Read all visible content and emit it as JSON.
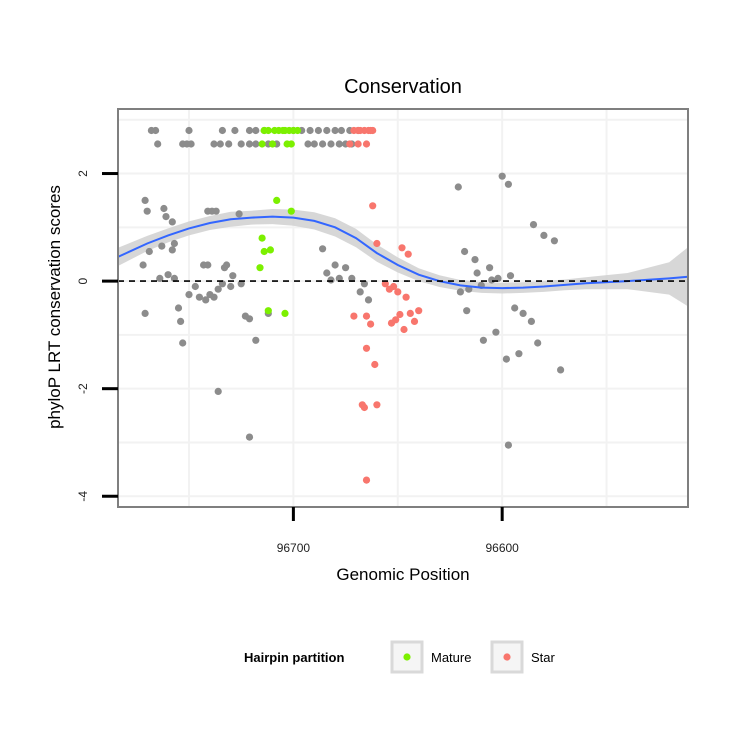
{
  "chart_data": {
    "type": "scatter",
    "title": "Conservation",
    "xlabel": "Genomic Position",
    "ylabel": "phyloP LRT conservation scores",
    "x_reversed": true,
    "xlim": [
      96784,
      96511
    ],
    "ylim": [
      -4.2,
      3.2
    ],
    "x_ticks": [
      96700,
      96600
    ],
    "y_ticks": [
      2,
      0,
      -2,
      -4
    ],
    "grid": true,
    "reference_line_y": 0,
    "legend": {
      "title": "Hairpin partition",
      "position": "bottom",
      "entries": [
        "Mature",
        "Star"
      ]
    },
    "colors": {
      "Other": "#8c8c8c",
      "Mature": "#7cf000",
      "Star": "#f8766d",
      "smooth_line": "#3366ff",
      "ribbon": "#d0d0d0",
      "panel_border": "#7f7f7f",
      "grid": "#f2f2f2"
    },
    "series": [
      {
        "label": "Other",
        "points": [
          [
            96768,
            2.8
          ],
          [
            96766,
            2.8
          ],
          [
            96750,
            2.8
          ],
          [
            96734,
            2.8
          ],
          [
            96728,
            2.8
          ],
          [
            96721,
            2.8
          ],
          [
            96718,
            2.8
          ],
          [
            96714,
            2.8
          ],
          [
            96700,
            2.8
          ],
          [
            96696,
            2.8
          ],
          [
            96692,
            2.8
          ],
          [
            96688,
            2.8
          ],
          [
            96684,
            2.8
          ],
          [
            96680,
            2.8
          ],
          [
            96677,
            2.8
          ],
          [
            96673,
            2.8
          ],
          [
            96669,
            2.8
          ],
          [
            96765,
            2.55
          ],
          [
            96753,
            2.55
          ],
          [
            96751,
            2.55
          ],
          [
            96749,
            2.55
          ],
          [
            96738,
            2.55
          ],
          [
            96735,
            2.55
          ],
          [
            96731,
            2.55
          ],
          [
            96725,
            2.55
          ],
          [
            96721,
            2.55
          ],
          [
            96718,
            2.55
          ],
          [
            96712,
            2.55
          ],
          [
            96708,
            2.55
          ],
          [
            96693,
            2.55
          ],
          [
            96690,
            2.55
          ],
          [
            96686,
            2.55
          ],
          [
            96682,
            2.55
          ],
          [
            96678,
            2.55
          ],
          [
            96675,
            2.55
          ],
          [
            96672,
            2.55
          ],
          [
            96771,
            1.5
          ],
          [
            96770,
            1.3
          ],
          [
            96762,
            1.35
          ],
          [
            96761,
            1.2
          ],
          [
            96758,
            1.1
          ],
          [
            96741,
            1.3
          ],
          [
            96739,
            1.3
          ],
          [
            96737,
            1.3
          ],
          [
            96726,
            1.25
          ],
          [
            96757,
            0.7
          ],
          [
            96763,
            0.65
          ],
          [
            96758,
            0.58
          ],
          [
            96769,
            0.55
          ],
          [
            96772,
            0.3
          ],
          [
            96760,
            0.12
          ],
          [
            96757,
            0.05
          ],
          [
            96743,
            0.3
          ],
          [
            96741,
            0.3
          ],
          [
            96733,
            0.25
          ],
          [
            96732,
            0.3
          ],
          [
            96729,
            0.1
          ],
          [
            96771,
            -0.6
          ],
          [
            96764,
            0.05
          ],
          [
            96755,
            -0.5
          ],
          [
            96754,
            -0.75
          ],
          [
            96750,
            -0.25
          ],
          [
            96747,
            -0.1
          ],
          [
            96745,
            -0.3
          ],
          [
            96742,
            -0.35
          ],
          [
            96740,
            -0.25
          ],
          [
            96738,
            -0.3
          ],
          [
            96736,
            -0.15
          ],
          [
            96734,
            -0.05
          ],
          [
            96730,
            -0.1
          ],
          [
            96725,
            -0.05
          ],
          [
            96723,
            -0.65
          ],
          [
            96721,
            -0.7
          ],
          [
            96718,
            -1.1
          ],
          [
            96712,
            -0.6
          ],
          [
            96753,
            -1.15
          ],
          [
            96736,
            -2.05
          ],
          [
            96721,
            -2.9
          ],
          [
            96686,
            0.6
          ],
          [
            96684,
            0.15
          ],
          [
            96682,
            0.02
          ],
          [
            96680,
            0.3
          ],
          [
            96678,
            0.05
          ],
          [
            96675,
            0.25
          ],
          [
            96672,
            0.05
          ],
          [
            96668,
            -0.2
          ],
          [
            96666,
            -0.05
          ],
          [
            96664,
            -0.35
          ],
          [
            96621,
            1.75
          ],
          [
            96600,
            1.95
          ],
          [
            96597,
            1.8
          ],
          [
            96585,
            1.05
          ],
          [
            96580,
            0.85
          ],
          [
            96575,
            0.75
          ],
          [
            96618,
            0.55
          ],
          [
            96613,
            0.4
          ],
          [
            96612,
            0.15
          ],
          [
            96606,
            0.25
          ],
          [
            96605,
            0.02
          ],
          [
            96602,
            0.05
          ],
          [
            96596,
            0.1
          ],
          [
            96594,
            -0.5
          ],
          [
            96590,
            -0.6
          ],
          [
            96586,
            -0.75
          ],
          [
            96583,
            -1.15
          ],
          [
            96572,
            -1.65
          ],
          [
            96603,
            -0.95
          ],
          [
            96609,
            -1.1
          ],
          [
            96592,
            -1.35
          ],
          [
            96598,
            -1.45
          ],
          [
            96617,
            -0.55
          ],
          [
            96597,
            -3.05
          ],
          [
            96616,
            -0.15
          ],
          [
            96610,
            -0.08
          ],
          [
            96620,
            -0.2
          ]
        ]
      },
      {
        "label": "Mature",
        "points": [
          [
            96714,
            2.8
          ],
          [
            96712,
            2.8
          ],
          [
            96709,
            2.8
          ],
          [
            96707,
            2.8
          ],
          [
            96705,
            2.8
          ],
          [
            96704,
            2.8
          ],
          [
            96702,
            2.8
          ],
          [
            96700,
            2.8
          ],
          [
            96698,
            2.8
          ],
          [
            96715,
            2.55
          ],
          [
            96710,
            2.55
          ],
          [
            96703,
            2.55
          ],
          [
            96701,
            2.55
          ],
          [
            96708,
            1.5
          ],
          [
            96701,
            1.3
          ],
          [
            96715,
            0.8
          ],
          [
            96714,
            0.55
          ],
          [
            96711,
            0.58
          ],
          [
            96716,
            0.25
          ],
          [
            96712,
            -0.55
          ],
          [
            96704,
            -0.6
          ]
        ]
      },
      {
        "label": "Star",
        "points": [
          [
            96671,
            2.8
          ],
          [
            96669,
            2.8
          ],
          [
            96668,
            2.8
          ],
          [
            96666,
            2.8
          ],
          [
            96664,
            2.8
          ],
          [
            96663,
            2.8
          ],
          [
            96662,
            2.8
          ],
          [
            96673,
            2.55
          ],
          [
            96669,
            2.55
          ],
          [
            96665,
            2.55
          ],
          [
            96662,
            1.4
          ],
          [
            96660,
            0.7
          ],
          [
            96648,
            0.62
          ],
          [
            96645,
            0.5
          ],
          [
            96652,
            -0.1
          ],
          [
            96654,
            -0.15
          ],
          [
            96650,
            -0.2
          ],
          [
            96656,
            -0.05
          ],
          [
            96646,
            -0.3
          ],
          [
            96644,
            -0.6
          ],
          [
            96649,
            -0.62
          ],
          [
            96651,
            -0.72
          ],
          [
            96653,
            -0.78
          ],
          [
            96647,
            -0.9
          ],
          [
            96640,
            -0.55
          ],
          [
            96642,
            -0.75
          ],
          [
            96671,
            -0.65
          ],
          [
            96665,
            -0.65
          ],
          [
            96663,
            -0.8
          ],
          [
            96665,
            -1.25
          ],
          [
            96661,
            -1.55
          ],
          [
            96667,
            -2.3
          ],
          [
            96666,
            -2.35
          ],
          [
            96660,
            -2.3
          ],
          [
            96665,
            -3.7
          ]
        ]
      }
    ],
    "smooth": {
      "x": [
        96784,
        96770,
        96760,
        96750,
        96740,
        96730,
        96720,
        96710,
        96700,
        96690,
        96680,
        96670,
        96660,
        96650,
        96640,
        96630,
        96620,
        96610,
        96600,
        96590,
        96580,
        96570,
        96560,
        96540,
        96520,
        96511
      ],
      "y": [
        0.45,
        0.7,
        0.85,
        0.98,
        1.08,
        1.15,
        1.18,
        1.2,
        1.18,
        1.12,
        1.0,
        0.8,
        0.52,
        0.3,
        0.12,
        0.0,
        -0.08,
        -0.12,
        -0.13,
        -0.12,
        -0.1,
        -0.07,
        -0.04,
        0.0,
        0.05,
        0.08
      ],
      "se": [
        0.17,
        0.14,
        0.13,
        0.13,
        0.13,
        0.14,
        0.13,
        0.14,
        0.15,
        0.16,
        0.17,
        0.17,
        0.16,
        0.14,
        0.12,
        0.11,
        0.1,
        0.1,
        0.1,
        0.1,
        0.1,
        0.1,
        0.11,
        0.15,
        0.3,
        0.55
      ]
    }
  }
}
